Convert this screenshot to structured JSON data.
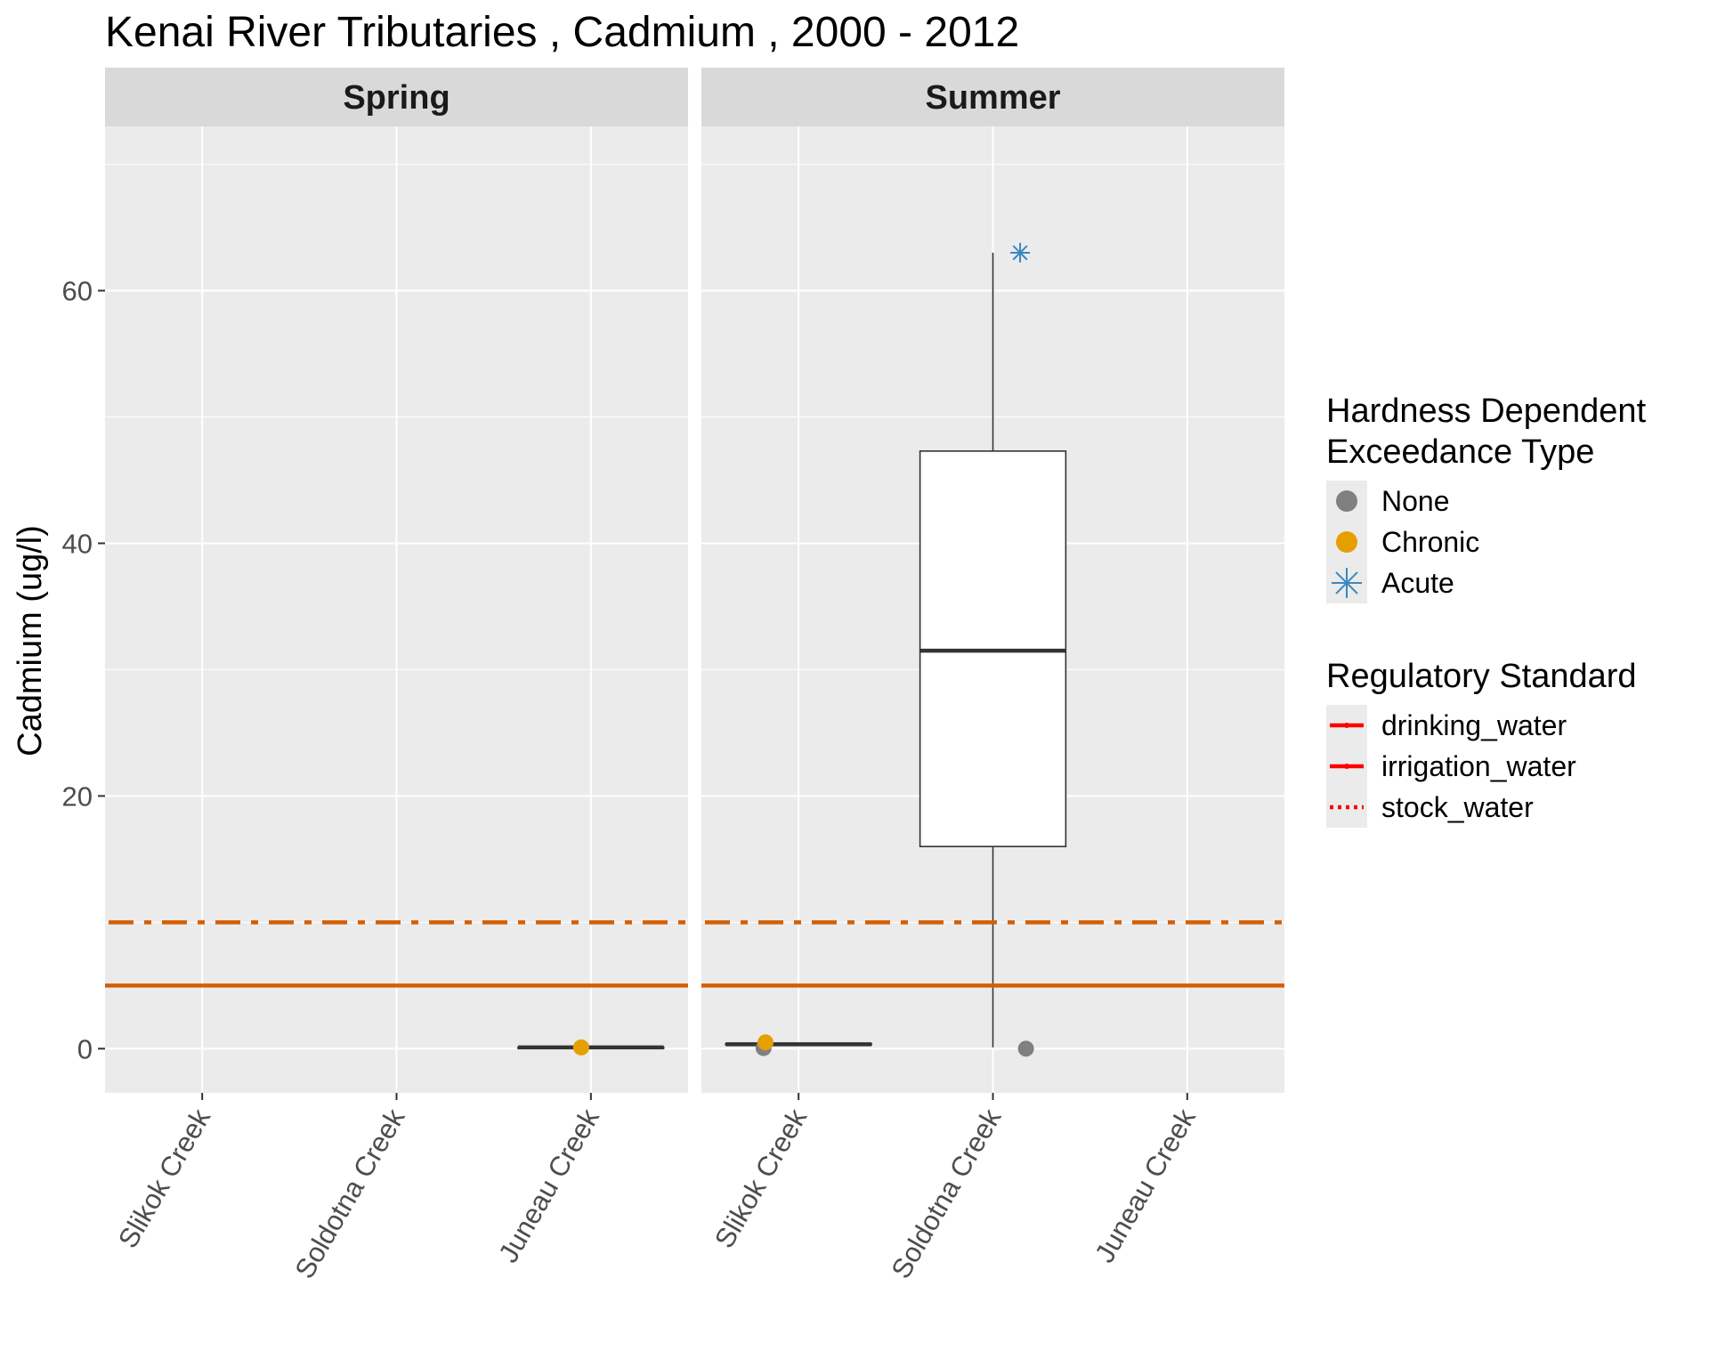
{
  "chart_data": {
    "type": "box",
    "title": "Kenai River Tributaries , Cadmium , 2000 - 2012",
    "ylabel": "Cadmium (ug/l)",
    "xlabel": "",
    "ylim": [
      -3.5,
      73
    ],
    "yticks": [
      0,
      20,
      40,
      60
    ],
    "grid": true,
    "categories": [
      "Slikok Creek",
      "Soldotna Creek",
      "Juneau Creek"
    ],
    "facets": [
      {
        "name": "Spring",
        "boxes": [
          {
            "category": "Juneau Creek",
            "min": 0.1,
            "q1": 0.1,
            "median": 0.1,
            "q3": 0.1,
            "max": 0.1
          }
        ],
        "points": [
          {
            "category": "Juneau Creek",
            "value": 0.1,
            "type": "Chronic",
            "offset": -0.05
          }
        ]
      },
      {
        "name": "Summer",
        "boxes": [
          {
            "category": "Slikok Creek",
            "min": 0.3,
            "q1": 0.3,
            "median": 0.35,
            "q3": 0.4,
            "max": 0.4
          },
          {
            "category": "Soldotna Creek",
            "min": 0.1,
            "q1": 16,
            "median": 31.5,
            "q3": 47.3,
            "max": 63
          }
        ],
        "points": [
          {
            "category": "Slikok Creek",
            "value": 0.05,
            "type": "None",
            "offset": -0.18
          },
          {
            "category": "Slikok Creek",
            "value": 0.5,
            "type": "Chronic",
            "offset": -0.17
          },
          {
            "category": "Soldotna Creek",
            "value": 0.0,
            "type": "None",
            "offset": 0.17
          },
          {
            "category": "Soldotna Creek",
            "value": 63,
            "type": "Acute",
            "offset": 0.14
          }
        ]
      }
    ],
    "reference_lines": [
      {
        "standard": "drinking_water",
        "value": 5,
        "style": "solid",
        "color": "#d55e00"
      },
      {
        "standard": "irrigation_water",
        "value": 10,
        "style": "dashdot",
        "color": "#d55e00"
      }
    ],
    "legends": [
      {
        "title": [
          "Hardness Dependent",
          "Exceedance Type"
        ],
        "placement": "right",
        "items": [
          {
            "label": "None",
            "symbol": "circle",
            "color": "#808080"
          },
          {
            "label": "Chronic",
            "symbol": "circle",
            "color": "#e69f00"
          },
          {
            "label": "Acute",
            "symbol": "asterisk",
            "color": "#3a87c0"
          }
        ]
      },
      {
        "title": [
          "Regulatory Standard"
        ],
        "placement": "right",
        "items": [
          {
            "label": "drinking_water",
            "line": "solid",
            "color": "#ff0000"
          },
          {
            "label": "irrigation_water",
            "line": "solid",
            "color": "#ff0000"
          },
          {
            "label": "stock_water",
            "line": "dotted",
            "color": "#ff0000"
          }
        ]
      }
    ],
    "colors": {
      "panel_background": "#ebebeb",
      "strip_background": "#d9d9d9",
      "grid": "#ffffff",
      "box_fill": "#ffffff",
      "box_stroke": "#333333",
      "legend_key_background": "#ebebeb"
    }
  }
}
